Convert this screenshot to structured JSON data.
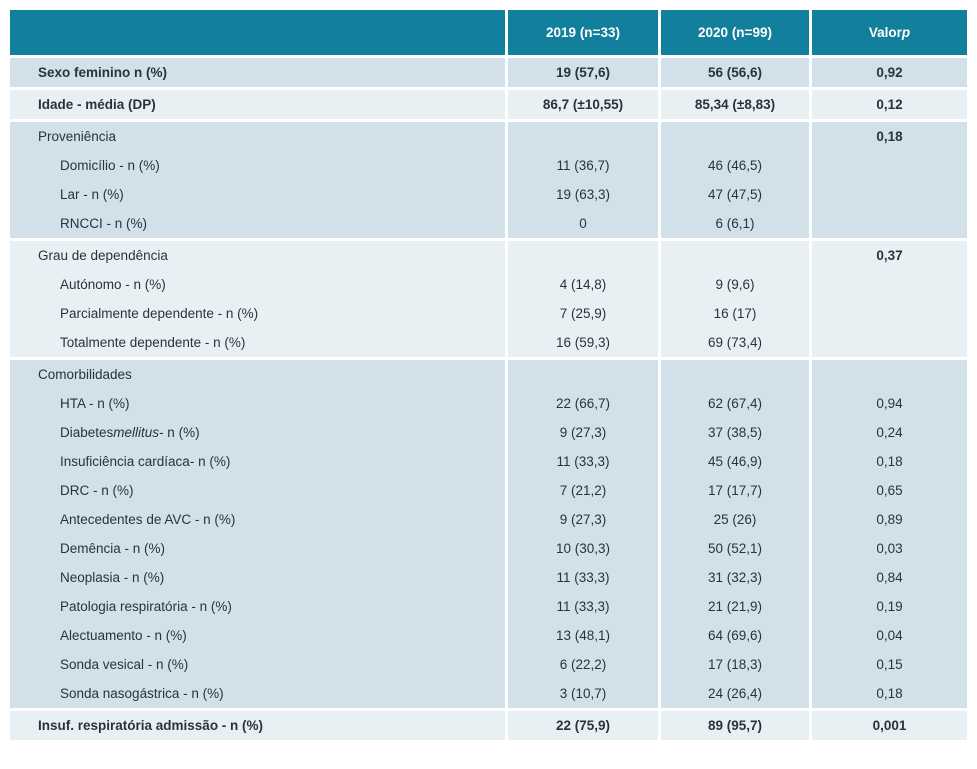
{
  "colors": {
    "header_bg": "#127f9c",
    "header_text": "#ffffff",
    "band_blue": "#d2e0e9",
    "band_light": "#e9f0f4",
    "body_text": "#26343e",
    "separator": "#ffffff"
  },
  "table": {
    "columns": [
      "",
      "2019 (n=33)",
      "2020 (n=99)",
      "Valor *p*"
    ],
    "bands": [
      {
        "rows": [
          {
            "cols": [
              "Sexo feminino n (%)",
              "19 (57,6)",
              "56 (56,6)",
              "0,92"
            ],
            "bold": true,
            "indent": false,
            "p_bold": false
          }
        ]
      },
      {
        "rows": [
          {
            "cols": [
              "Idade - média (DP)",
              "86,7 (±10,55)",
              "85,34 (±8,83)",
              "0,12"
            ],
            "bold": true,
            "indent": false,
            "p_bold": false
          }
        ]
      },
      {
        "rows": [
          {
            "cols": [
              "Proveniência",
              "",
              "",
              "0,18"
            ],
            "bold": false,
            "indent": false,
            "p_bold": true
          },
          {
            "cols": [
              "Domicílio - n (%)",
              "11 (36,7)",
              "46 (46,5)",
              ""
            ],
            "bold": false,
            "indent": true,
            "p_bold": false
          },
          {
            "cols": [
              "Lar - n (%)",
              "19 (63,3)",
              "47 (47,5)",
              ""
            ],
            "bold": false,
            "indent": true,
            "p_bold": false
          },
          {
            "cols": [
              "RNCCI - n (%)",
              "0",
              "6 (6,1)",
              ""
            ],
            "bold": false,
            "indent": true,
            "p_bold": false
          }
        ]
      },
      {
        "rows": [
          {
            "cols": [
              "Grau de dependência",
              "",
              "",
              "0,37"
            ],
            "bold": false,
            "indent": false,
            "p_bold": true
          },
          {
            "cols": [
              "Autónomo - n (%)",
              "4 (14,8)",
              "9 (9,6)",
              ""
            ],
            "bold": false,
            "indent": true,
            "p_bold": false
          },
          {
            "cols": [
              "Parcialmente dependente - n (%)",
              "7 (25,9)",
              "16 (17)",
              ""
            ],
            "bold": false,
            "indent": true,
            "p_bold": false
          },
          {
            "cols": [
              "Totalmente dependente - n (%)",
              "16 (59,3)",
              "69 (73,4)",
              ""
            ],
            "bold": false,
            "indent": true,
            "p_bold": false
          }
        ]
      },
      {
        "rows": [
          {
            "cols": [
              "Comorbilidades",
              "",
              "",
              ""
            ],
            "bold": false,
            "indent": false,
            "p_bold": false
          },
          {
            "cols": [
              "HTA - n (%)",
              "22 (66,7)",
              "62 (67,4)",
              "0,94"
            ],
            "bold": false,
            "indent": true,
            "p_bold": false
          },
          {
            "cols": [
              "Diabetes *mellitus* - n (%)",
              "9 (27,3)",
              "37 (38,5)",
              "0,24"
            ],
            "bold": false,
            "indent": true,
            "p_bold": false
          },
          {
            "cols": [
              "Insuficiência cardíaca- n (%)",
              "11 (33,3)",
              "45 (46,9)",
              "0,18"
            ],
            "bold": false,
            "indent": true,
            "p_bold": false
          },
          {
            "cols": [
              "DRC - n (%)",
              "7 (21,2)",
              "17 (17,7)",
              "0,65"
            ],
            "bold": false,
            "indent": true,
            "p_bold": false
          },
          {
            "cols": [
              "Antecedentes de AVC - n (%)",
              "9 (27,3)",
              "25 (26)",
              "0,89"
            ],
            "bold": false,
            "indent": true,
            "p_bold": false
          },
          {
            "cols": [
              "Demência - n (%)",
              "10 (30,3)",
              "50 (52,1)",
              "0,03"
            ],
            "bold": false,
            "indent": true,
            "p_bold": false
          },
          {
            "cols": [
              "Neoplasia - n (%)",
              "11 (33,3)",
              "31 (32,3)",
              "0,84"
            ],
            "bold": false,
            "indent": true,
            "p_bold": false
          },
          {
            "cols": [
              "Patologia respiratória - n (%)",
              "11 (33,3)",
              "21 (21,9)",
              "0,19"
            ],
            "bold": false,
            "indent": true,
            "p_bold": false
          },
          {
            "cols": [
              "Alectuamento - n (%)",
              "13 (48,1)",
              "64 (69,6)",
              "0,04"
            ],
            "bold": false,
            "indent": true,
            "p_bold": false
          },
          {
            "cols": [
              "Sonda vesical - n (%)",
              "6 (22,2)",
              "17 (18,3)",
              "0,15"
            ],
            "bold": false,
            "indent": true,
            "p_bold": false
          },
          {
            "cols": [
              "Sonda nasogástrica - n (%)",
              "3 (10,7)",
              "24 (26,4)",
              "0,18"
            ],
            "bold": false,
            "indent": true,
            "p_bold": false
          }
        ]
      },
      {
        "rows": [
          {
            "cols": [
              "Insuf. respiratória admissão - n (%)",
              "22 (75,9)",
              "89 (95,7)",
              "0,001"
            ],
            "bold": true,
            "indent": false,
            "p_bold": false
          }
        ]
      }
    ]
  }
}
